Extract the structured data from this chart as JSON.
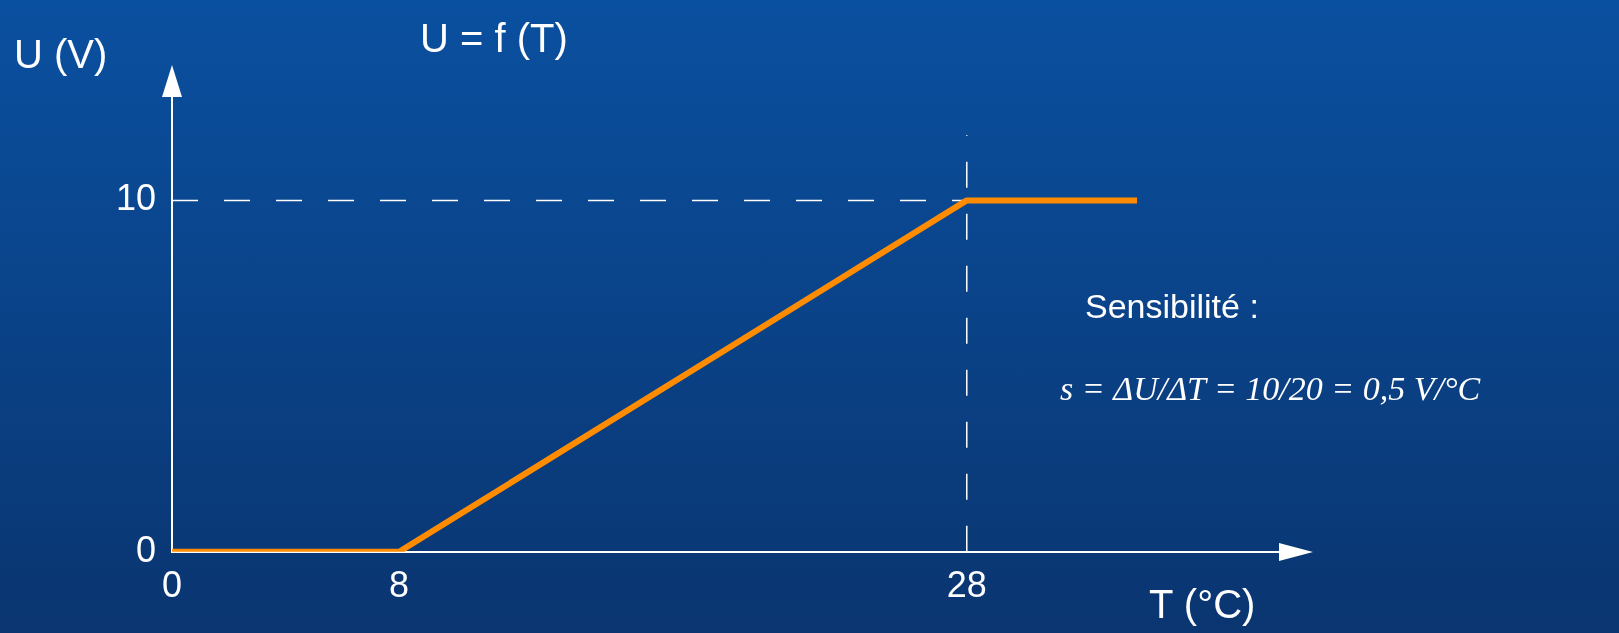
{
  "chart_data": {
    "type": "line",
    "title": "U = f (T)",
    "xlabel": "T (°C)",
    "ylabel": "U (V)",
    "x": [
      0,
      8,
      28,
      34
    ],
    "series": [
      {
        "color": "#ff8c00",
        "values": [
          0,
          0,
          10,
          10
        ]
      }
    ],
    "xlim": [
      0,
      39
    ],
    "xticks": [
      0,
      8,
      28
    ],
    "ylim": [
      0,
      13
    ],
    "yticks": [
      0,
      10
    ],
    "grid": false,
    "legend": false,
    "marker": "none",
    "line_style": "solid",
    "ref_lines": [
      {
        "axis": "y",
        "value": 10,
        "color": "#ffffff",
        "line_style": "dashed"
      },
      {
        "axis": "x",
        "value": 28,
        "color": "#ffffff",
        "line_style": "dashed"
      }
    ],
    "annotations": [
      "Sensibilité :",
      "s = ΔU/ΔT = 10/20 = 0,5 V/°C"
    ]
  }
}
